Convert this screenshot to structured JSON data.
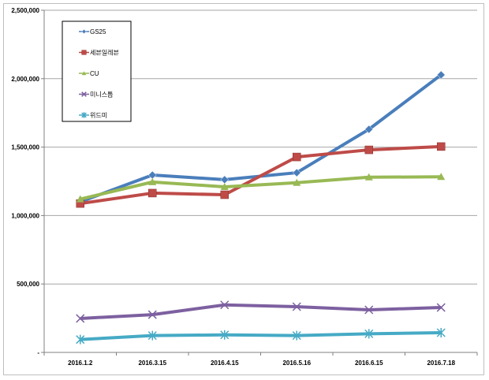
{
  "chart_data": {
    "type": "line",
    "title": "",
    "xlabel": "",
    "ylabel": "",
    "categories": [
      "2016.1.2",
      "2016.3.15",
      "2016.4.15",
      "2016.5.16",
      "2016.6.15",
      "2016.7.18"
    ],
    "ylim": [
      0,
      2500000
    ],
    "yticks": [
      0,
      500000,
      1000000,
      1500000,
      2000000,
      2500000
    ],
    "ytick_labels": [
      "-",
      "500,000",
      "1,000,000",
      "1,500,000",
      "2,000,000",
      "2,500,000"
    ],
    "grid": true,
    "legend_position": "top-left",
    "series": [
      {
        "name": "GS25",
        "color": "#4a7ebb",
        "marker": "diamond",
        "values": [
          1100000,
          1296000,
          1262000,
          1313000,
          1630000,
          2028000
        ]
      },
      {
        "name": "세븐일레븐",
        "color": "#be4b48",
        "marker": "square",
        "values": [
          1088000,
          1164000,
          1152000,
          1428000,
          1480000,
          1504000
        ]
      },
      {
        "name": "CU",
        "color": "#98b954",
        "marker": "triangle",
        "values": [
          1120000,
          1245000,
          1210000,
          1240000,
          1280000,
          1283000
        ]
      },
      {
        "name": "미니스톱",
        "color": "#7d60a0",
        "marker": "x",
        "values": [
          248000,
          276000,
          347000,
          334000,
          311000,
          328000
        ]
      },
      {
        "name": "위드미",
        "color": "#46aac5",
        "marker": "asterisk",
        "values": [
          94000,
          123000,
          128000,
          123000,
          136000,
          144000
        ]
      }
    ]
  }
}
